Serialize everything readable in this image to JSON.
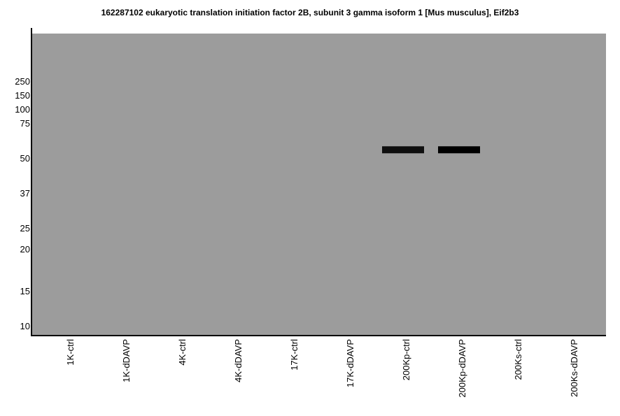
{
  "chart_data": {
    "type": "western-blot",
    "title": "162287102 eukaryotic translation initiation factor 2B, subunit 3 gamma isoform 1 [Mus musculus], Eif2b3",
    "background_color": "#9c9c9c",
    "y_axis": {
      "label": "",
      "scale": "log",
      "ticks": [
        250,
        150,
        100,
        75,
        50,
        37,
        25,
        20,
        15,
        10
      ]
    },
    "lanes": [
      "1K-ctrl",
      "1K-dDAVP",
      "4K-ctrl",
      "4K-dDAVP",
      "17K-ctrl",
      "17K-dDAVP",
      "200Kp-ctrl",
      "200Kp-dDAVP",
      "200Ks-ctrl",
      "200Ks-dDAVP"
    ],
    "bands": [
      {
        "lane": "200Kp-ctrl",
        "mw_kda": 55,
        "intensity": 0.94,
        "color": "#0f0f0f"
      },
      {
        "lane": "200Kp-dDAVP",
        "mw_kda": 55,
        "intensity": 1.0,
        "color": "#000000"
      }
    ]
  }
}
